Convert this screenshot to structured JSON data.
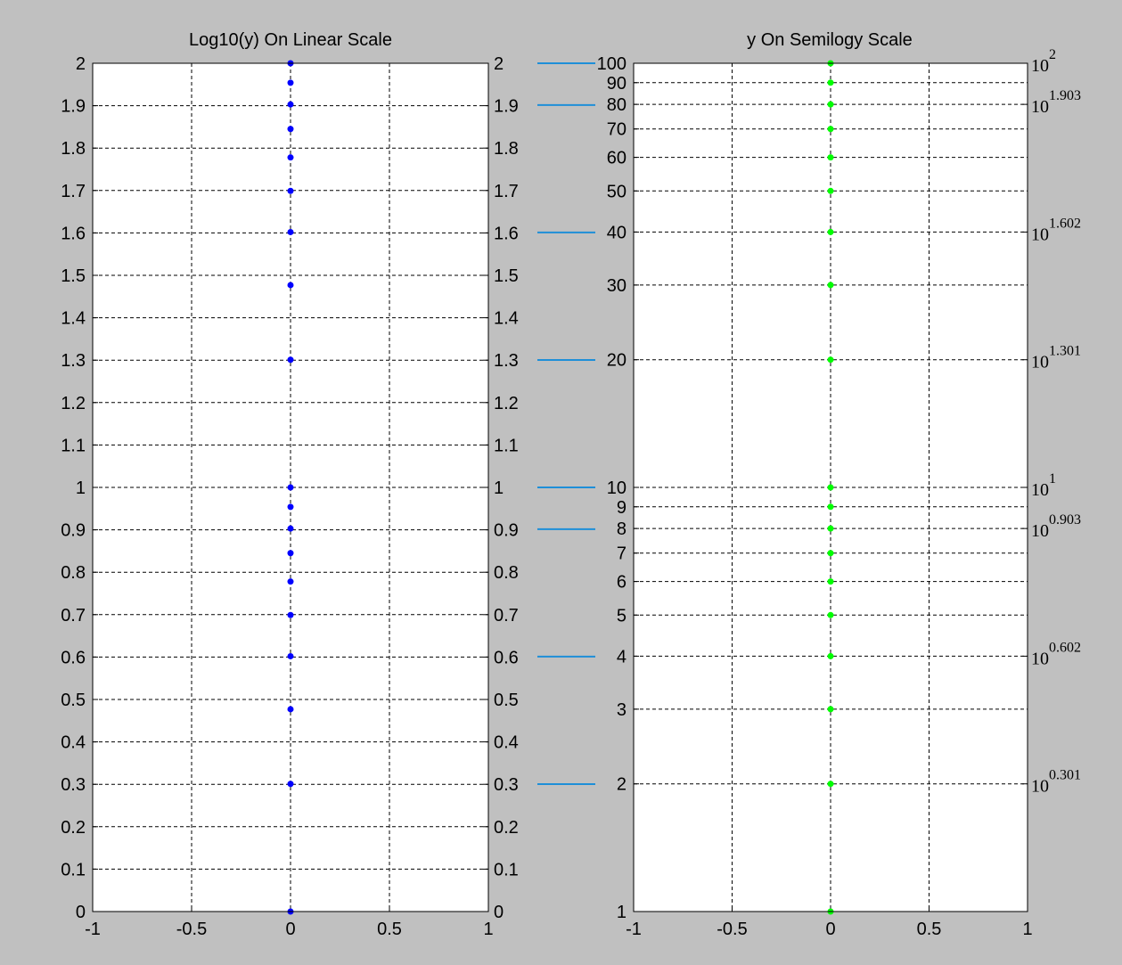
{
  "chart_data": [
    {
      "type": "scatter",
      "title": "Log10(y) On Linear Scale",
      "xlim": [
        -1,
        1
      ],
      "ylim": [
        0,
        2
      ],
      "grid": true,
      "x_ticks": [
        "-1",
        "-0.5",
        "0",
        "0.5",
        "1"
      ],
      "y_ticks_left": [
        "0",
        "0.1",
        "0.2",
        "0.3",
        "0.4",
        "0.5",
        "0.6",
        "0.7",
        "0.8",
        "0.9",
        "1",
        "1.1",
        "1.2",
        "1.3",
        "1.4",
        "1.5",
        "1.6",
        "1.7",
        "1.8",
        "1.9",
        "2"
      ],
      "y_ticks_right": [
        "0",
        "0.1",
        "0.2",
        "0.3",
        "0.4",
        "0.5",
        "0.6",
        "0.7",
        "0.8",
        "0.9",
        "1",
        "1.1",
        "1.2",
        "1.3",
        "1.4",
        "1.5",
        "1.6",
        "1.7",
        "1.8",
        "1.9",
        "2"
      ],
      "marker_color": "#0000ff",
      "x": [
        0,
        0,
        0,
        0,
        0,
        0,
        0,
        0,
        0,
        0,
        0,
        0,
        0,
        0,
        0,
        0,
        0,
        0,
        0
      ],
      "y": [
        0,
        0.301,
        0.477,
        0.602,
        0.699,
        0.778,
        0.845,
        0.903,
        0.954,
        1,
        1.301,
        1.477,
        1.602,
        1.699,
        1.778,
        1.845,
        1.903,
        1.954,
        2
      ]
    },
    {
      "type": "scatter",
      "title": "y On Semilogy Scale",
      "xlim": [
        -1,
        1
      ],
      "ylim": [
        1,
        100
      ],
      "y_scale": "log",
      "grid": true,
      "x_ticks": [
        "-1",
        "-0.5",
        "0",
        "0.5",
        "1"
      ],
      "y_ticks_left": [
        "1",
        "2",
        "3",
        "4",
        "5",
        "6",
        "7",
        "8",
        "9",
        "10",
        "20",
        "30",
        "40",
        "50",
        "60",
        "70",
        "80",
        "90",
        "100"
      ],
      "y_ticks_right": [
        {
          "value": 2,
          "base": "10",
          "exp": "0.301"
        },
        {
          "value": 4,
          "base": "10",
          "exp": "0.602"
        },
        {
          "value": 8,
          "base": "10",
          "exp": "0.903"
        },
        {
          "value": 10,
          "base": "10",
          "exp": "1"
        },
        {
          "value": 20,
          "base": "10",
          "exp": "1.301"
        },
        {
          "value": 40,
          "base": "10",
          "exp": "1.602"
        },
        {
          "value": 80,
          "base": "10",
          "exp": "1.903"
        },
        {
          "value": 100,
          "base": "10",
          "exp": "2"
        }
      ],
      "marker_color": "#00ff00",
      "x": [
        0,
        0,
        0,
        0,
        0,
        0,
        0,
        0,
        0,
        0,
        0,
        0,
        0,
        0,
        0,
        0,
        0,
        0,
        0
      ],
      "y": [
        1,
        2,
        3,
        4,
        5,
        6,
        7,
        8,
        9,
        10,
        20,
        30,
        40,
        50,
        60,
        70,
        80,
        90,
        100
      ]
    }
  ],
  "connectors": [
    {
      "from": 2,
      "to": 100
    },
    {
      "from": 1.9,
      "to": 80
    },
    {
      "from": 1.6,
      "to": 40
    },
    {
      "from": 1.3,
      "to": 20
    },
    {
      "from": 1,
      "to": 10
    },
    {
      "from": 0.9,
      "to": 8
    },
    {
      "from": 0.6,
      "to": 4
    },
    {
      "from": 0.3,
      "to": 2
    }
  ],
  "connector_color": "#1e8fd8"
}
